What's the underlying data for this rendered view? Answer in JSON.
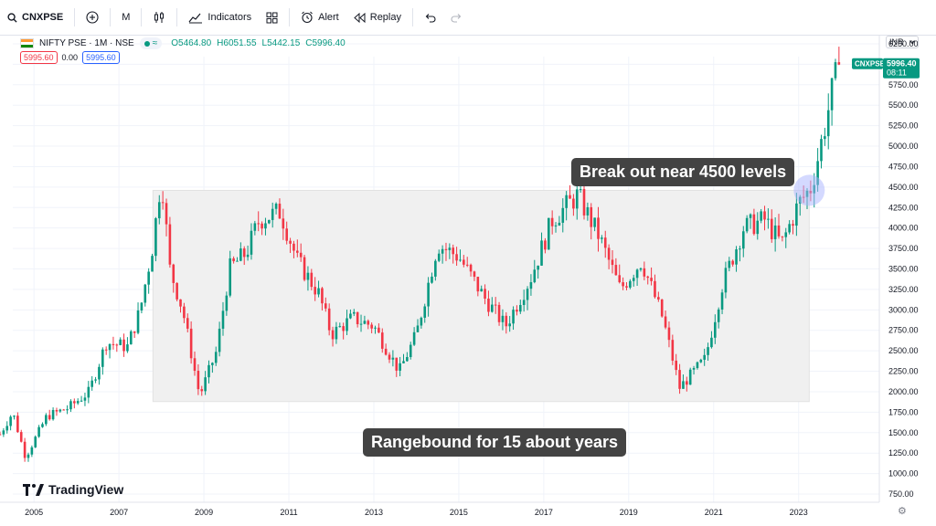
{
  "toolbar": {
    "symbol": "CNXPSE",
    "interval": "M",
    "indicators_label": "Indicators",
    "alert_label": "Alert",
    "replay_label": "Replay"
  },
  "legend": {
    "title": "NIFTY PSE · 1M · NSE",
    "open": "O5464.80",
    "high": "H6051.55",
    "low": "L5442.15",
    "close": "C5996.40",
    "status_symbol": "≈"
  },
  "price_boxes": {
    "sell": "5995.60",
    "spread": "0.00",
    "buy": "5995.60"
  },
  "currency": "INR",
  "last_price_tag": {
    "symbol": "CNXPSE",
    "price": "5996.40",
    "countdown": "08:11"
  },
  "annotations": {
    "breakout": "Break out near 4500 levels",
    "range": "Rangebound for 15 about years"
  },
  "branding": "TradingView",
  "colors": {
    "up": "#089981",
    "down": "#f23645",
    "range_box": "#f0f0f0",
    "tag": "#089981",
    "highlight": "#aab4ff"
  },
  "chart_data": {
    "type": "candlestick",
    "title": "NIFTY PSE · 1M · NSE",
    "x_axis_ticks": [
      "2005",
      "2007",
      "2009",
      "2011",
      "2013",
      "2015",
      "2017",
      "2019",
      "2021",
      "2023"
    ],
    "y_axis_ticks": [
      750,
      1000,
      1250,
      1500,
      1750,
      2000,
      2250,
      2500,
      2750,
      3000,
      3250,
      3500,
      3750,
      4000,
      4250,
      4500,
      4750,
      5000,
      5250,
      5500,
      5750,
      6000,
      6250
    ],
    "y_axis_tick_labels": [
      "750.00",
      "1000.00",
      "1250.00",
      "1500.00",
      "1750.00",
      "2000.00",
      "2250.00",
      "2500.00",
      "2750.00",
      "3000.00",
      "3250.00",
      "3500.00",
      "3750.00",
      "4000.00",
      "4250.00",
      "4500.00",
      "4750.00",
      "5000.00",
      "5250.00",
      "5500.00",
      "5750.00",
      "6000.00",
      "6250.00"
    ],
    "ylim": [
      650,
      6350
    ],
    "xlim": [
      2004.2,
      2024.9
    ],
    "grid": true,
    "range_box": {
      "x_start": 2007.8,
      "x_end": 2023.25,
      "y_low": 1880,
      "y_high": 4460
    },
    "breakout_marker": {
      "x": 2023.25,
      "y": 4460
    },
    "key_points": [
      {
        "x": 2004.2,
        "y": 1480
      },
      {
        "x": 2004.5,
        "y": 1750
      },
      {
        "x": 2004.8,
        "y": 1200
      },
      {
        "x": 2005.3,
        "y": 1700
      },
      {
        "x": 2005.8,
        "y": 1800
      },
      {
        "x": 2006.3,
        "y": 2000
      },
      {
        "x": 2006.7,
        "y": 2600
      },
      {
        "x": 2007.2,
        "y": 2550
      },
      {
        "x": 2007.5,
        "y": 3000
      },
      {
        "x": 2007.8,
        "y": 3800
      },
      {
        "x": 2008.0,
        "y": 4650
      },
      {
        "x": 2008.2,
        "y": 3500
      },
      {
        "x": 2008.5,
        "y": 3000
      },
      {
        "x": 2008.9,
        "y": 1950
      },
      {
        "x": 2009.3,
        "y": 2500
      },
      {
        "x": 2009.6,
        "y": 3500
      },
      {
        "x": 2010.0,
        "y": 3700
      },
      {
        "x": 2010.3,
        "y": 4100
      },
      {
        "x": 2010.8,
        "y": 4200
      },
      {
        "x": 2011.2,
        "y": 3600
      },
      {
        "x": 2011.7,
        "y": 3200
      },
      {
        "x": 2012.0,
        "y": 2700
      },
      {
        "x": 2012.5,
        "y": 2900
      },
      {
        "x": 2013.0,
        "y": 2800
      },
      {
        "x": 2013.6,
        "y": 2250
      },
      {
        "x": 2014.0,
        "y": 2700
      },
      {
        "x": 2014.5,
        "y": 3800
      },
      {
        "x": 2015.0,
        "y": 3650
      },
      {
        "x": 2015.6,
        "y": 3150
      },
      {
        "x": 2016.1,
        "y": 2800
      },
      {
        "x": 2016.7,
        "y": 3400
      },
      {
        "x": 2017.2,
        "y": 4100
      },
      {
        "x": 2017.8,
        "y": 4400
      },
      {
        "x": 2018.3,
        "y": 3900
      },
      {
        "x": 2018.8,
        "y": 3250
      },
      {
        "x": 2019.3,
        "y": 3600
      },
      {
        "x": 2019.8,
        "y": 2900
      },
      {
        "x": 2020.2,
        "y": 2050
      },
      {
        "x": 2020.8,
        "y": 2400
      },
      {
        "x": 2021.2,
        "y": 3300
      },
      {
        "x": 2021.7,
        "y": 4000
      },
      {
        "x": 2022.2,
        "y": 4100
      },
      {
        "x": 2022.6,
        "y": 3800
      },
      {
        "x": 2023.0,
        "y": 4300
      },
      {
        "x": 2023.3,
        "y": 4500
      },
      {
        "x": 2023.6,
        "y": 5200
      },
      {
        "x": 2023.8,
        "y": 5700
      },
      {
        "x": 2023.95,
        "y": 5996
      }
    ]
  }
}
